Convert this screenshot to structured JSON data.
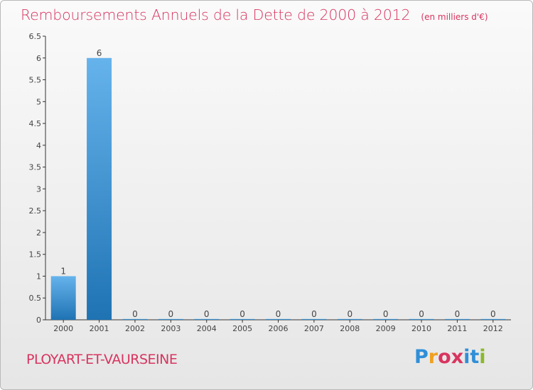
{
  "header": {
    "title": "Remboursements Annuels de la Dette de 2000 à 2012",
    "unit": "(en milliers d'€)"
  },
  "footer": {
    "commune": "PLOYART-ET-VAURSEINE",
    "logo_text": "Proxiti",
    "logo_letters": [
      "P",
      "r",
      "o",
      "x",
      "i",
      "t",
      "i"
    ],
    "logo_colors": [
      "#2f8fd8",
      "#f0a020",
      "#d8345f",
      "#d8345f",
      "#2f8fd8",
      "#2f8fd8",
      "#8ab92a"
    ]
  },
  "colors": {
    "title": "#d8345f",
    "bar_light": "#66b3ec",
    "bar_dark": "#1f73b3"
  },
  "chart_data": {
    "type": "bar",
    "title": "Remboursements Annuels de la Dette de 2000 à 2012",
    "ylabel": "(en milliers d'€)",
    "xlabel": "",
    "categories": [
      "2000",
      "2001",
      "2002",
      "2003",
      "2004",
      "2005",
      "2006",
      "2007",
      "2008",
      "2009",
      "2010",
      "2011",
      "2012"
    ],
    "values": [
      1,
      6,
      0,
      0,
      0,
      0,
      0,
      0,
      0,
      0,
      0,
      0,
      0
    ],
    "value_labels": [
      "1",
      "6",
      "0",
      "0",
      "0",
      "0",
      "0",
      "0",
      "0",
      "0",
      "0",
      "0",
      "0"
    ],
    "yticks": [
      "0",
      "0.5",
      "1",
      "1.5",
      "2",
      "2.5",
      "3",
      "3.5",
      "4",
      "4.5",
      "5",
      "5.5",
      "6",
      "6.5"
    ],
    "ylim": [
      0,
      6.5
    ],
    "grid": false,
    "legend": "none"
  }
}
